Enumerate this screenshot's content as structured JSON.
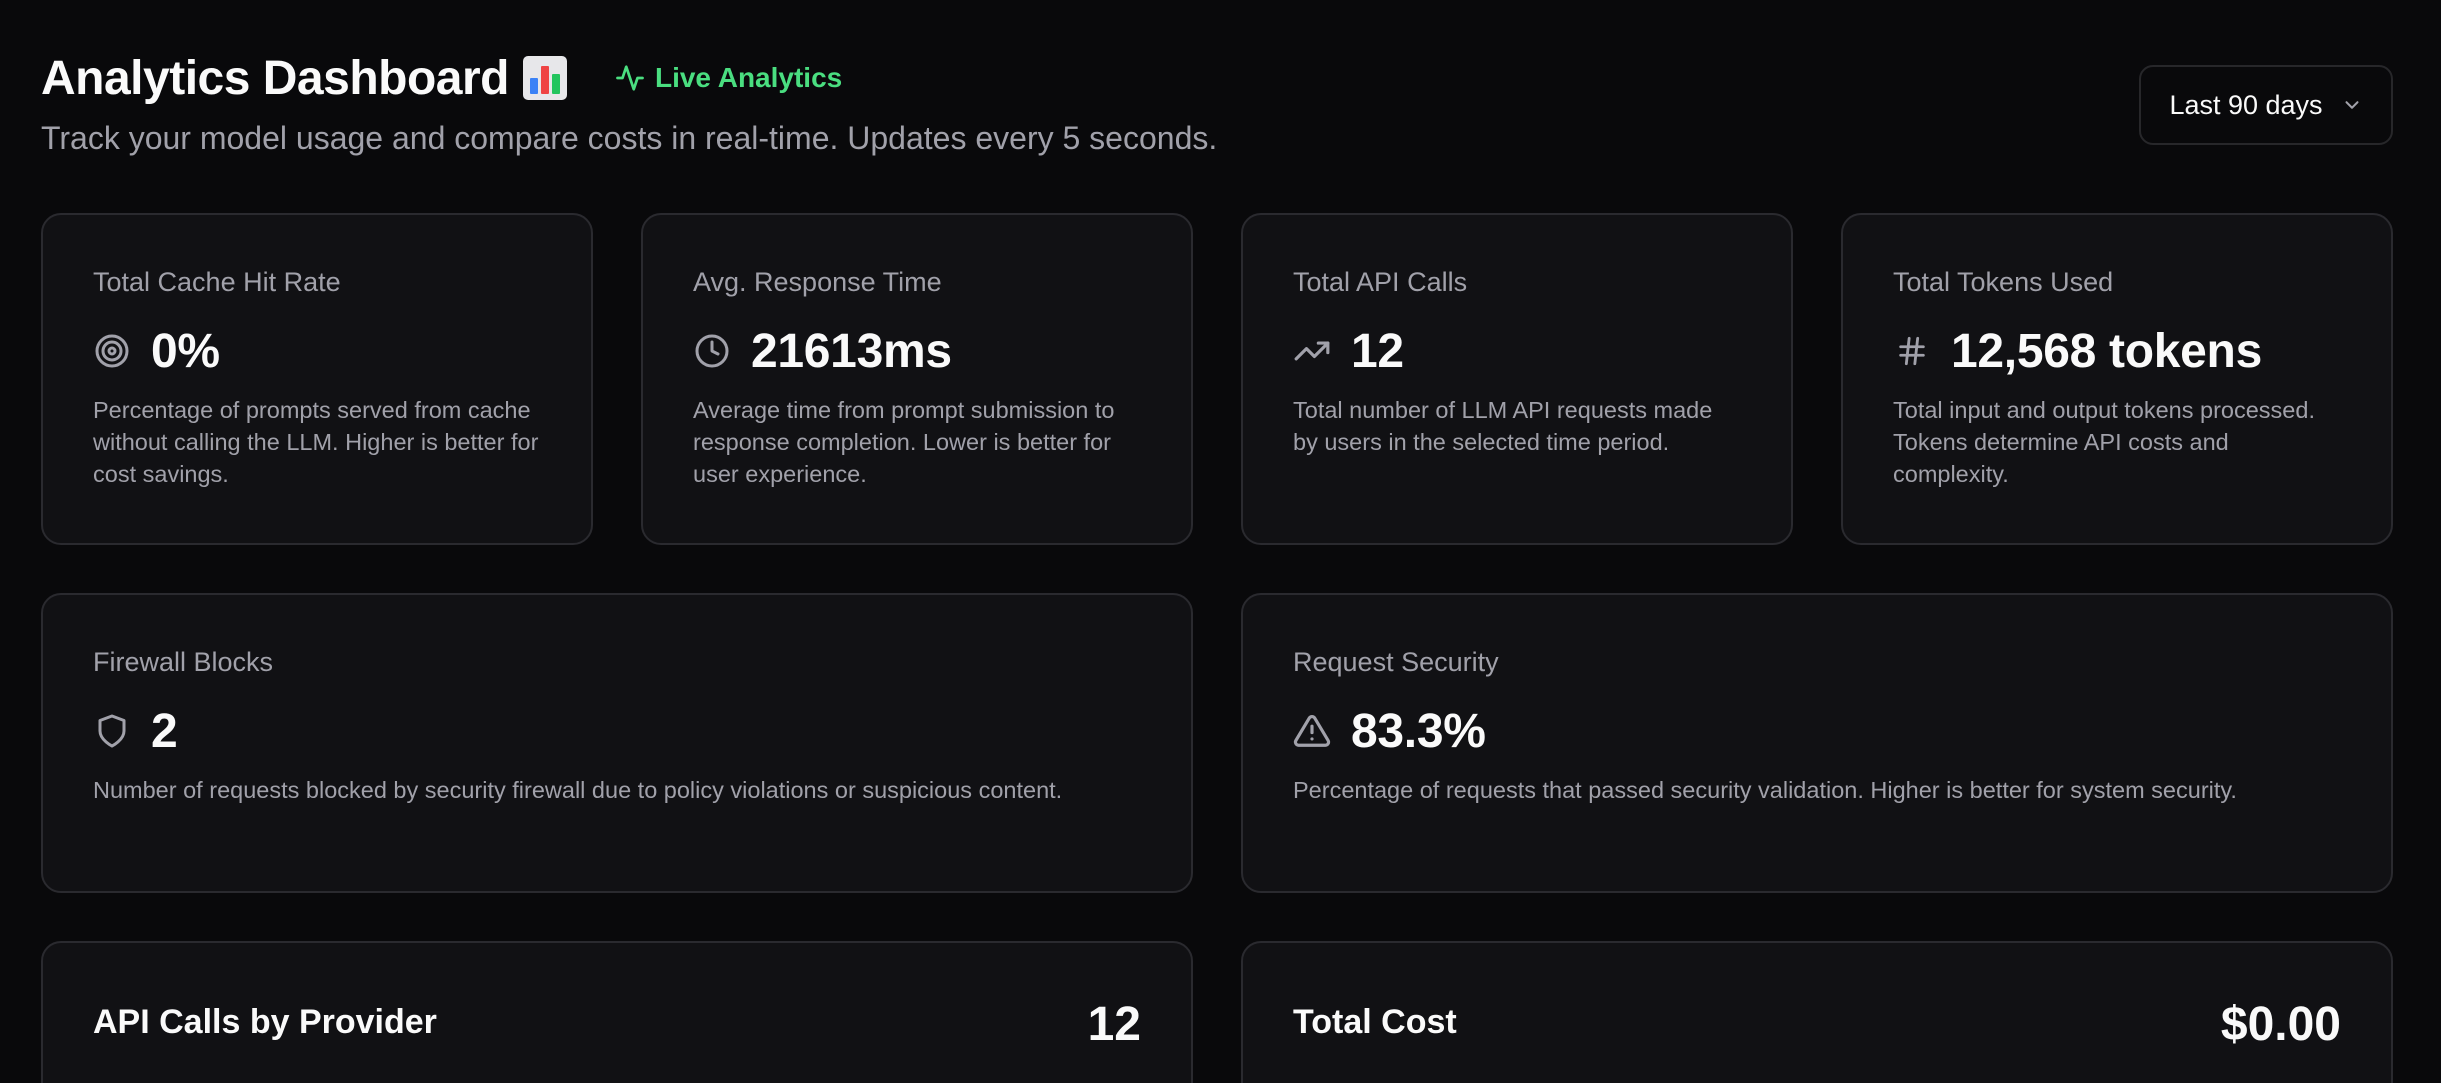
{
  "header": {
    "title": "Analytics Dashboard",
    "title_emoji": "bar-chart-emoji",
    "live_label": "Live Analytics",
    "live_color": "#4ade80",
    "subtitle": "Track your model usage and compare costs in real-time. Updates every 5 seconds.",
    "range_select": {
      "value": "Last 90 days"
    }
  },
  "stats": [
    {
      "label": "Total Cache Hit Rate",
      "icon": "target-icon",
      "value": "0%",
      "description": "Percentage of prompts served from cache without calling the LLM. Higher is better for cost savings."
    },
    {
      "label": "Avg. Response Time",
      "icon": "clock-icon",
      "value": "21613ms",
      "description": "Average time from prompt submission to response completion. Lower is better for user experience."
    },
    {
      "label": "Total API Calls",
      "icon": "trending-up-icon",
      "value": "12",
      "description": "Total number of LLM API requests made by users in the selected time period."
    },
    {
      "label": "Total Tokens Used",
      "icon": "hash-icon",
      "value": "12,568 tokens",
      "description": "Total input and output tokens processed. Tokens determine API costs and complexity."
    }
  ],
  "security": [
    {
      "label": "Firewall Blocks",
      "icon": "shield-icon",
      "value": "2",
      "description": "Number of requests blocked by security firewall due to policy violations or suspicious content."
    },
    {
      "label": "Request Security",
      "icon": "alert-triangle-icon",
      "value": "83.3%",
      "description": "Percentage of requests that passed security validation. Higher is better for system security."
    }
  ],
  "panels": [
    {
      "title": "API Calls by Provider",
      "value": "12"
    },
    {
      "title": "Total Cost",
      "value": "$0.00"
    }
  ]
}
